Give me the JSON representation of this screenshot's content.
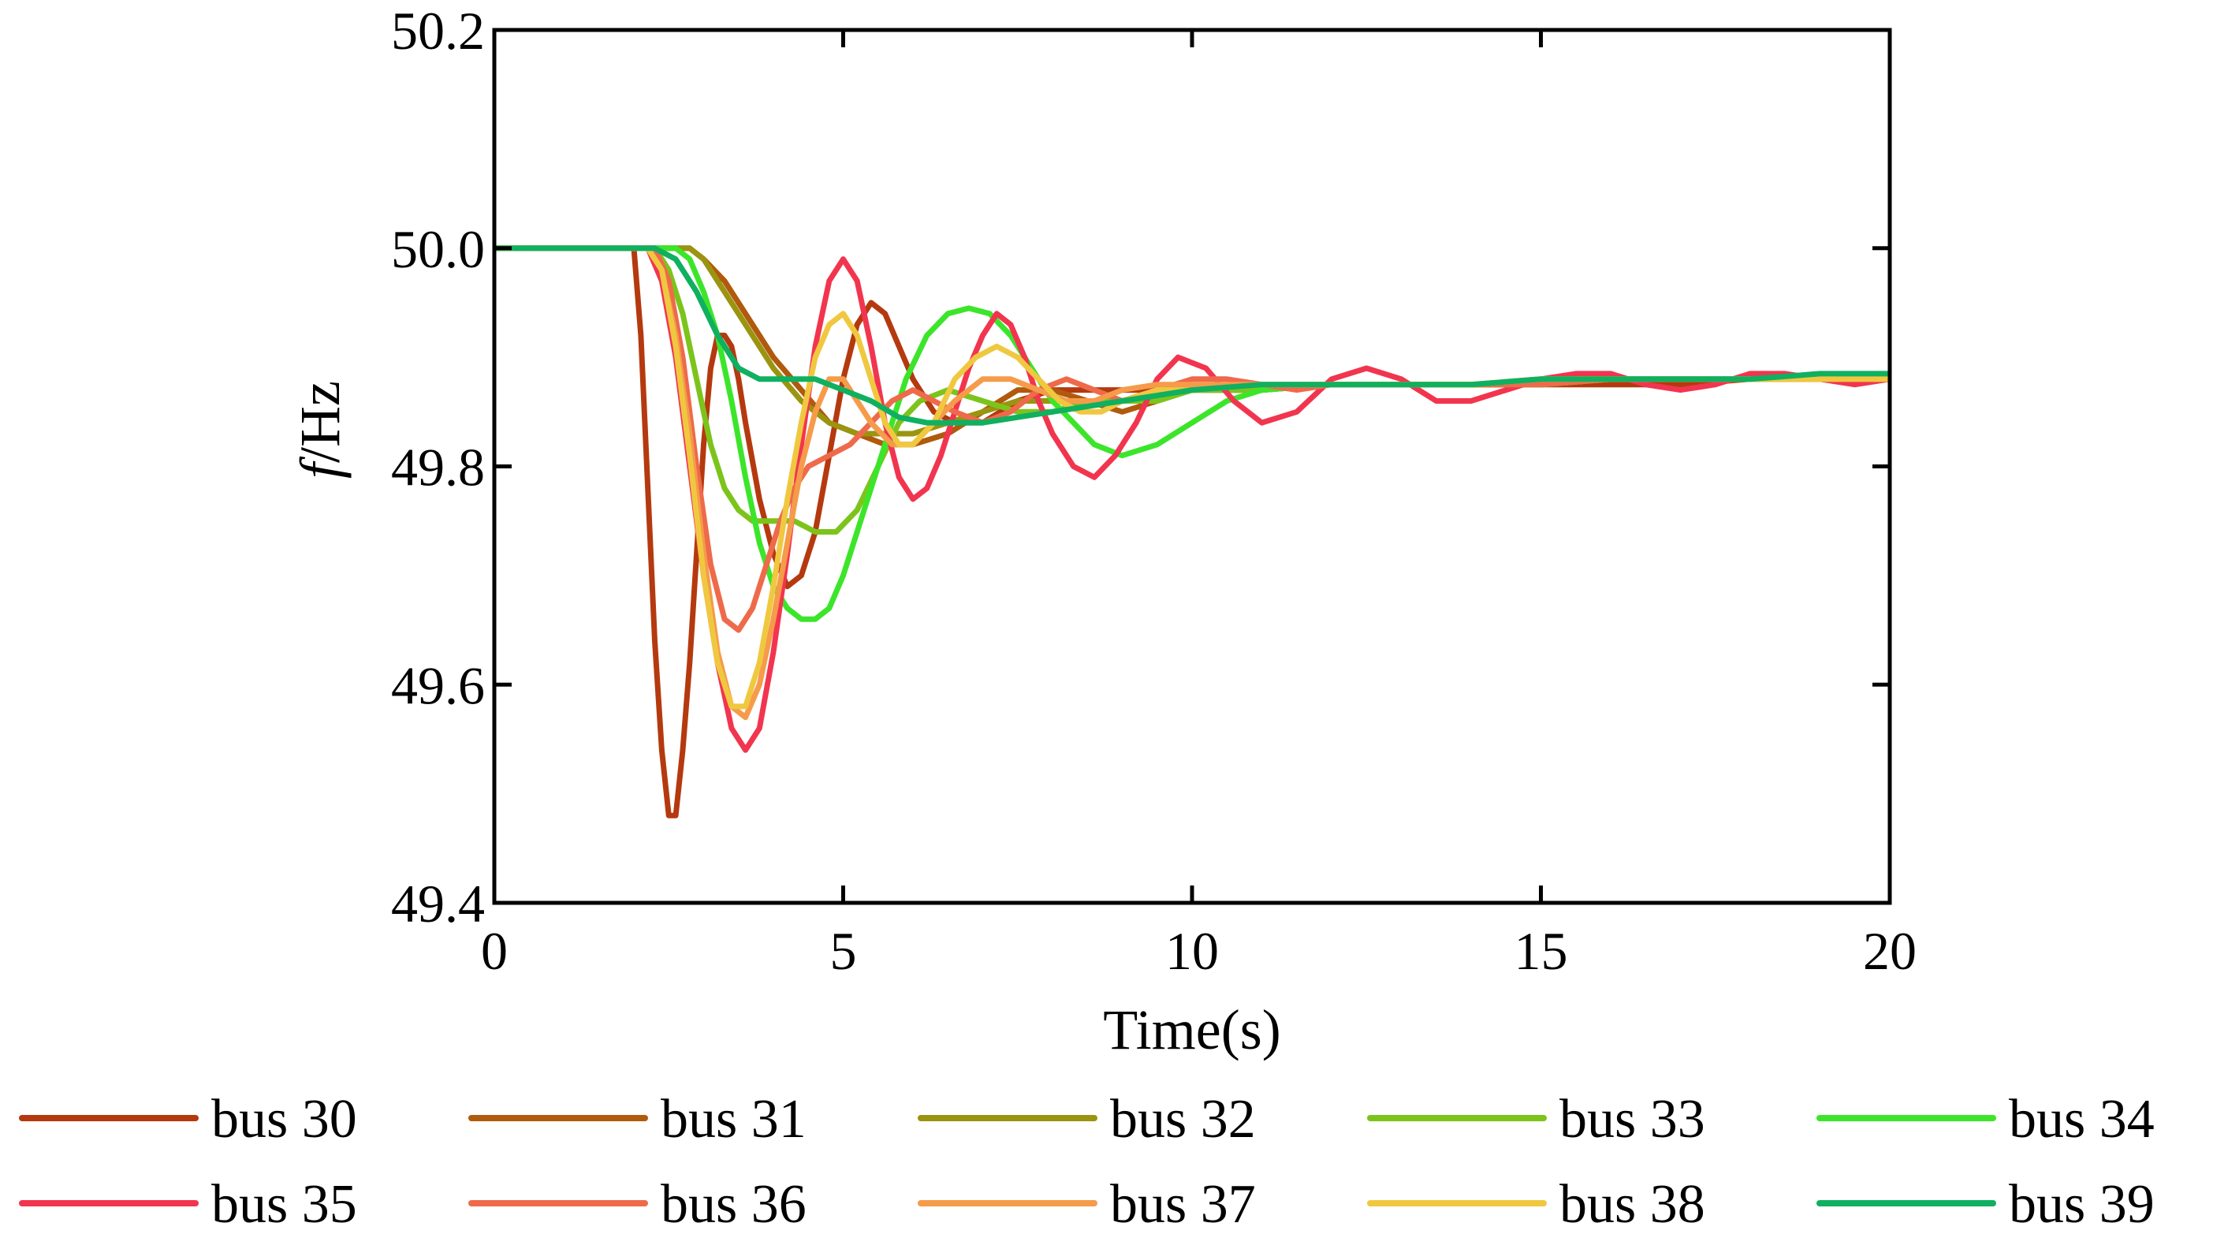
{
  "chart_data": {
    "type": "line",
    "xlabel": "Time(s)",
    "ylabel": {
      "symbol": "f",
      "unit": "/Hz"
    },
    "xlim": [
      0,
      20
    ],
    "ylim": [
      49.4,
      50.2
    ],
    "xticks": [
      "0",
      "5",
      "10",
      "15",
      "20"
    ],
    "yticks": [
      "49.4",
      "49.6",
      "49.8",
      "50.0",
      "50.2"
    ],
    "grid": false,
    "legend_position": "bottom",
    "series": [
      {
        "name": "bus 30",
        "color": "#B5390F",
        "x": [
          0,
          1.9,
          2.0,
          2.1,
          2.2,
          2.3,
          2.4,
          2.5,
          2.6,
          2.7,
          2.8,
          2.9,
          3.0,
          3.1,
          3.2,
          3.3,
          3.4,
          3.5,
          3.6,
          3.8,
          4.0,
          4.2,
          4.4,
          4.6,
          4.8,
          5.0,
          5.2,
          5.4,
          5.6,
          5.8,
          6.0,
          6.3,
          6.6,
          7.0,
          7.5,
          8.0,
          8.5,
          9.0,
          9.5,
          10,
          11,
          12,
          13,
          14,
          15,
          16,
          17,
          18,
          19,
          20
        ],
        "values": [
          50.0,
          50.0,
          50.0,
          49.92,
          49.78,
          49.64,
          49.54,
          49.48,
          49.48,
          49.54,
          49.62,
          49.72,
          49.82,
          49.89,
          49.92,
          49.92,
          49.91,
          49.88,
          49.84,
          49.77,
          49.72,
          49.69,
          49.7,
          49.74,
          49.81,
          49.88,
          49.93,
          49.95,
          49.94,
          49.91,
          49.88,
          49.85,
          49.84,
          49.84,
          49.86,
          49.87,
          49.87,
          49.87,
          49.87,
          49.87,
          49.87,
          49.875,
          49.875,
          49.875,
          49.875,
          49.875,
          49.875,
          49.88,
          49.88,
          49.88
        ]
      },
      {
        "name": "bus 31",
        "color": "#B05A0D",
        "x": [
          0,
          2.5,
          2.8,
          3.0,
          3.3,
          3.6,
          4.0,
          4.4,
          4.8,
          5.2,
          5.6,
          6.0,
          6.5,
          7.0,
          7.5,
          8.0,
          8.5,
          9.0,
          9.5,
          10,
          11,
          12,
          13,
          14,
          15,
          16,
          17,
          18,
          19,
          20
        ],
        "values": [
          50.0,
          50.0,
          50.0,
          49.99,
          49.97,
          49.94,
          49.9,
          49.87,
          49.84,
          49.83,
          49.82,
          49.82,
          49.83,
          49.85,
          49.87,
          49.87,
          49.86,
          49.85,
          49.86,
          49.87,
          49.87,
          49.875,
          49.875,
          49.875,
          49.875,
          49.88,
          49.88,
          49.88,
          49.88,
          49.88
        ]
      },
      {
        "name": "bus 32",
        "color": "#9A9410",
        "x": [
          0,
          2.5,
          2.8,
          3.0,
          3.3,
          3.6,
          4.0,
          4.4,
          4.8,
          5.2,
          5.6,
          6.0,
          6.5,
          7.0,
          7.5,
          8.0,
          8.5,
          9.0,
          9.5,
          10,
          11,
          12,
          13,
          14,
          15,
          16,
          17,
          18,
          19,
          20
        ],
        "values": [
          50.0,
          50.0,
          50.0,
          49.99,
          49.96,
          49.93,
          49.89,
          49.86,
          49.84,
          49.83,
          49.83,
          49.83,
          49.84,
          49.85,
          49.86,
          49.86,
          49.86,
          49.86,
          49.87,
          49.87,
          49.87,
          49.875,
          49.875,
          49.875,
          49.875,
          49.88,
          49.88,
          49.88,
          49.88,
          49.88
        ]
      },
      {
        "name": "bus 33",
        "color": "#7CC41C",
        "x": [
          0,
          2.3,
          2.5,
          2.7,
          2.9,
          3.1,
          3.3,
          3.5,
          3.7,
          4.0,
          4.3,
          4.6,
          4.9,
          5.2,
          5.5,
          5.8,
          6.1,
          6.5,
          7.0,
          7.5,
          8.0,
          8.5,
          9.0,
          9.5,
          10,
          11,
          12,
          13,
          14,
          15,
          16,
          17,
          18,
          19,
          20
        ],
        "values": [
          50.0,
          50.0,
          49.98,
          49.94,
          49.88,
          49.82,
          49.78,
          49.76,
          49.75,
          49.75,
          49.75,
          49.74,
          49.74,
          49.76,
          49.8,
          49.84,
          49.86,
          49.87,
          49.86,
          49.85,
          49.85,
          49.86,
          49.86,
          49.86,
          49.87,
          49.87,
          49.875,
          49.875,
          49.875,
          49.875,
          49.88,
          49.88,
          49.88,
          49.88,
          49.88
        ]
      },
      {
        "name": "bus 34",
        "color": "#3CE52A",
        "x": [
          0,
          2.6,
          2.8,
          3.0,
          3.2,
          3.4,
          3.6,
          3.8,
          4.0,
          4.2,
          4.4,
          4.6,
          4.8,
          5.0,
          5.3,
          5.6,
          5.9,
          6.2,
          6.5,
          6.8,
          7.1,
          7.4,
          7.7,
          8.0,
          8.3,
          8.6,
          9.0,
          9.5,
          10,
          10.5,
          11,
          12,
          13,
          14,
          15,
          16,
          17,
          18,
          19,
          20
        ],
        "values": [
          50.0,
          50.0,
          49.99,
          49.96,
          49.92,
          49.86,
          49.79,
          49.73,
          49.69,
          49.67,
          49.66,
          49.66,
          49.67,
          49.7,
          49.76,
          49.82,
          49.88,
          49.92,
          49.94,
          49.945,
          49.94,
          49.92,
          49.89,
          49.86,
          49.84,
          49.82,
          49.81,
          49.82,
          49.84,
          49.86,
          49.87,
          49.875,
          49.875,
          49.875,
          49.875,
          49.88,
          49.88,
          49.88,
          49.88,
          49.88
        ]
      },
      {
        "name": "bus 35",
        "color": "#F2354F",
        "x": [
          0,
          2.2,
          2.4,
          2.6,
          2.8,
          3.0,
          3.2,
          3.4,
          3.6,
          3.8,
          4.0,
          4.2,
          4.4,
          4.6,
          4.8,
          5.0,
          5.2,
          5.4,
          5.6,
          5.8,
          6.0,
          6.2,
          6.4,
          6.6,
          6.8,
          7.0,
          7.2,
          7.4,
          7.6,
          7.8,
          8.0,
          8.3,
          8.6,
          8.9,
          9.2,
          9.5,
          9.8,
          10.2,
          10.6,
          11.0,
          11.5,
          12.0,
          12.5,
          13.0,
          13.5,
          14.0,
          14.5,
          15.0,
          15.5,
          16.0,
          16.5,
          17.0,
          17.5,
          18.0,
          18.5,
          19.0,
          19.5,
          20
        ],
        "values": [
          50.0,
          50.0,
          49.97,
          49.9,
          49.8,
          49.7,
          49.62,
          49.56,
          49.54,
          49.56,
          49.63,
          49.72,
          49.82,
          49.91,
          49.97,
          49.99,
          49.97,
          49.91,
          49.84,
          49.79,
          49.77,
          49.78,
          49.81,
          49.85,
          49.89,
          49.92,
          49.94,
          49.93,
          49.9,
          49.86,
          49.83,
          49.8,
          49.79,
          49.81,
          49.84,
          49.88,
          49.9,
          49.89,
          49.86,
          49.84,
          49.85,
          49.88,
          49.89,
          49.88,
          49.86,
          49.86,
          49.87,
          49.88,
          49.885,
          49.885,
          49.875,
          49.87,
          49.875,
          49.885,
          49.885,
          49.88,
          49.875,
          49.88
        ]
      },
      {
        "name": "bus 36",
        "color": "#EE6A4A",
        "x": [
          0,
          2.3,
          2.5,
          2.7,
          2.9,
          3.1,
          3.3,
          3.5,
          3.7,
          3.9,
          4.1,
          4.3,
          4.5,
          4.8,
          5.1,
          5.4,
          5.7,
          6.0,
          6.3,
          6.6,
          7.0,
          7.4,
          7.8,
          8.2,
          8.6,
          9.0,
          9.5,
          10,
          10.5,
          11,
          11.5,
          12,
          13,
          14,
          15,
          16,
          17,
          18,
          19,
          20
        ],
        "values": [
          50.0,
          50.0,
          49.97,
          49.9,
          49.8,
          49.71,
          49.66,
          49.65,
          49.67,
          49.71,
          49.75,
          49.78,
          49.8,
          49.81,
          49.82,
          49.84,
          49.86,
          49.87,
          49.86,
          49.85,
          49.84,
          49.85,
          49.87,
          49.88,
          49.87,
          49.86,
          49.87,
          49.88,
          49.88,
          49.875,
          49.87,
          49.875,
          49.875,
          49.875,
          49.875,
          49.88,
          49.88,
          49.88,
          49.88,
          49.88
        ]
      },
      {
        "name": "bus 37",
        "color": "#F59B4A",
        "x": [
          0,
          2.2,
          2.4,
          2.6,
          2.8,
          3.0,
          3.2,
          3.4,
          3.6,
          3.8,
          4.0,
          4.2,
          4.4,
          4.6,
          4.8,
          5.0,
          5.2,
          5.4,
          5.7,
          6.0,
          6.3,
          6.6,
          7.0,
          7.4,
          7.8,
          8.2,
          8.6,
          9.0,
          9.5,
          10,
          11,
          12,
          13,
          14,
          15,
          16,
          17,
          18,
          19,
          20
        ],
        "values": [
          50.0,
          50.0,
          49.98,
          49.92,
          49.83,
          49.72,
          49.63,
          49.58,
          49.57,
          49.6,
          49.66,
          49.73,
          49.8,
          49.85,
          49.88,
          49.88,
          49.86,
          49.84,
          49.82,
          49.82,
          49.84,
          49.86,
          49.88,
          49.88,
          49.87,
          49.86,
          49.86,
          49.87,
          49.875,
          49.875,
          49.875,
          49.875,
          49.875,
          49.875,
          49.88,
          49.88,
          49.88,
          49.88,
          49.88,
          49.88
        ]
      },
      {
        "name": "bus 38",
        "color": "#F0C840",
        "x": [
          0,
          2.2,
          2.4,
          2.6,
          2.8,
          3.0,
          3.2,
          3.4,
          3.6,
          3.8,
          4.0,
          4.2,
          4.4,
          4.6,
          4.8,
          5.0,
          5.2,
          5.4,
          5.6,
          5.8,
          6.0,
          6.3,
          6.6,
          6.9,
          7.2,
          7.5,
          7.8,
          8.1,
          8.4,
          8.7,
          9.0,
          9.5,
          10,
          11,
          12,
          13,
          14,
          15,
          16,
          17,
          18,
          19,
          20
        ],
        "values": [
          50.0,
          50.0,
          49.98,
          49.91,
          49.81,
          49.7,
          49.62,
          49.58,
          49.58,
          49.62,
          49.69,
          49.77,
          49.84,
          49.9,
          49.93,
          49.94,
          49.92,
          49.88,
          49.84,
          49.82,
          49.82,
          49.84,
          49.88,
          49.9,
          49.91,
          49.9,
          49.88,
          49.86,
          49.85,
          49.85,
          49.86,
          49.87,
          49.87,
          49.875,
          49.875,
          49.875,
          49.875,
          49.88,
          49.88,
          49.88,
          49.88,
          49.88,
          49.88
        ]
      },
      {
        "name": "bus 39",
        "color": "#0FB060",
        "x": [
          0,
          2.3,
          2.6,
          2.9,
          3.2,
          3.5,
          3.8,
          4.2,
          4.6,
          5.0,
          5.4,
          5.8,
          6.2,
          6.6,
          7.0,
          7.5,
          8.0,
          8.5,
          9.0,
          9.5,
          10,
          11,
          12,
          13,
          14,
          15,
          16,
          17,
          18,
          19,
          20
        ],
        "values": [
          50.0,
          50.0,
          49.99,
          49.96,
          49.92,
          49.89,
          49.88,
          49.88,
          49.88,
          49.87,
          49.86,
          49.845,
          49.84,
          49.84,
          49.84,
          49.845,
          49.85,
          49.855,
          49.86,
          49.865,
          49.87,
          49.875,
          49.875,
          49.875,
          49.875,
          49.88,
          49.88,
          49.88,
          49.88,
          49.885,
          49.885
        ]
      }
    ]
  }
}
